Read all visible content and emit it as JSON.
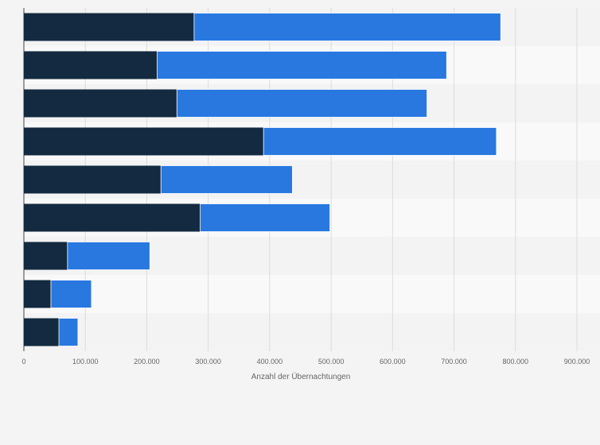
{
  "chart_data": {
    "type": "bar",
    "orientation": "horizontal",
    "stacked": true,
    "categories": [
      "",
      "",
      "",
      "",
      "",
      "",
      "",
      "",
      ""
    ],
    "series": [
      {
        "values": [
          277000,
          217000,
          249000,
          390000,
          223000,
          287000,
          71000,
          44000,
          57000
        ],
        "color": "#132a40"
      },
      {
        "values": [
          499000,
          471000,
          407000,
          379000,
          214000,
          211000,
          134000,
          66000,
          31000
        ],
        "color": "#2878e0"
      }
    ],
    "xlabel": "Anzahl der Übernachtungen",
    "xlim": [
      0,
      900000
    ],
    "xticks": [
      0,
      100000,
      200000,
      300000,
      400000,
      500000,
      600000,
      700000,
      800000,
      900000
    ],
    "xtick_labels": [
      "0",
      "100.000",
      "200.000",
      "300.000",
      "400.000",
      "500.000",
      "600.000",
      "700.000",
      "800.000",
      "900.000"
    ],
    "grid": true,
    "band_colors": [
      "#f3f3f3",
      "#f9f9f9"
    ],
    "legend": "none"
  }
}
